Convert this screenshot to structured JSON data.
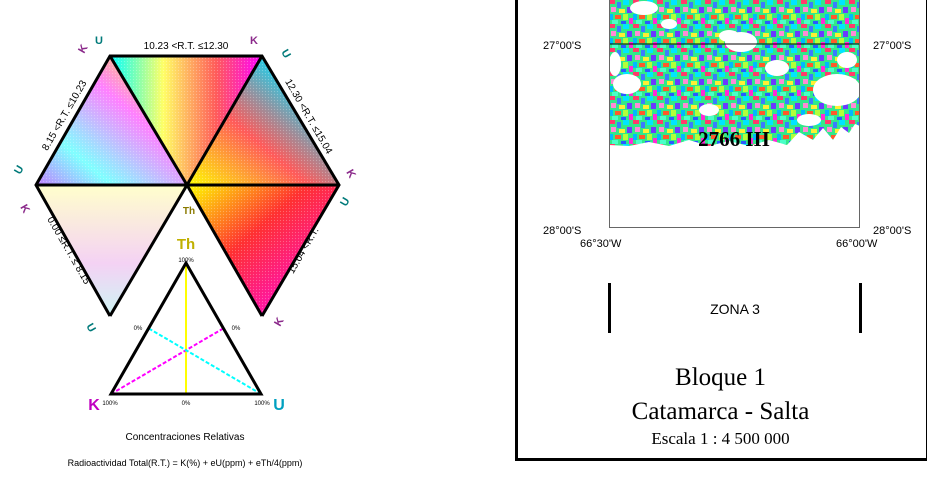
{
  "legend": {
    "sectors": [
      {
        "range": "10.23 <R.T. ≤12.30"
      },
      {
        "range": "12.30 <R.T. ≤15.04"
      },
      {
        "range": "15.04 <R.T."
      },
      {
        "range": "0.00 ≤R.T. ≤ 8.15"
      },
      {
        "range": "8.15 <R.T. ≤10.23"
      }
    ],
    "vertex_letters": {
      "u": "U",
      "k": "K"
    },
    "center_label": "Th",
    "ternary": {
      "top_label": "Th",
      "left_label": "K",
      "right_label": "U",
      "pct_100": "100%",
      "pct_0": "0%"
    },
    "caption": "Concentraciones Relativas",
    "formula": "Radioactividad Total(R.T.) = K(%) + eU(ppm) + eTh/4(ppm)"
  },
  "map": {
    "lat_top": "27°00'S",
    "lat_bottom": "28°00'S",
    "lon_left": "66°30'W",
    "lon_right": "66°00'W",
    "sheet_label": "2766 III",
    "zone_label": "ZONA 3",
    "block_title": "Bloque 1",
    "region": "Catamarca - Salta",
    "scale": "Escala 1 : 4 500 000"
  },
  "colors": {
    "k": "#ff00ff",
    "u": "#00ffff",
    "th": "#ffff00",
    "u_letter": "#007a7a",
    "k_letter": "#8b2a8b",
    "th_letter": "#8a7a00"
  }
}
